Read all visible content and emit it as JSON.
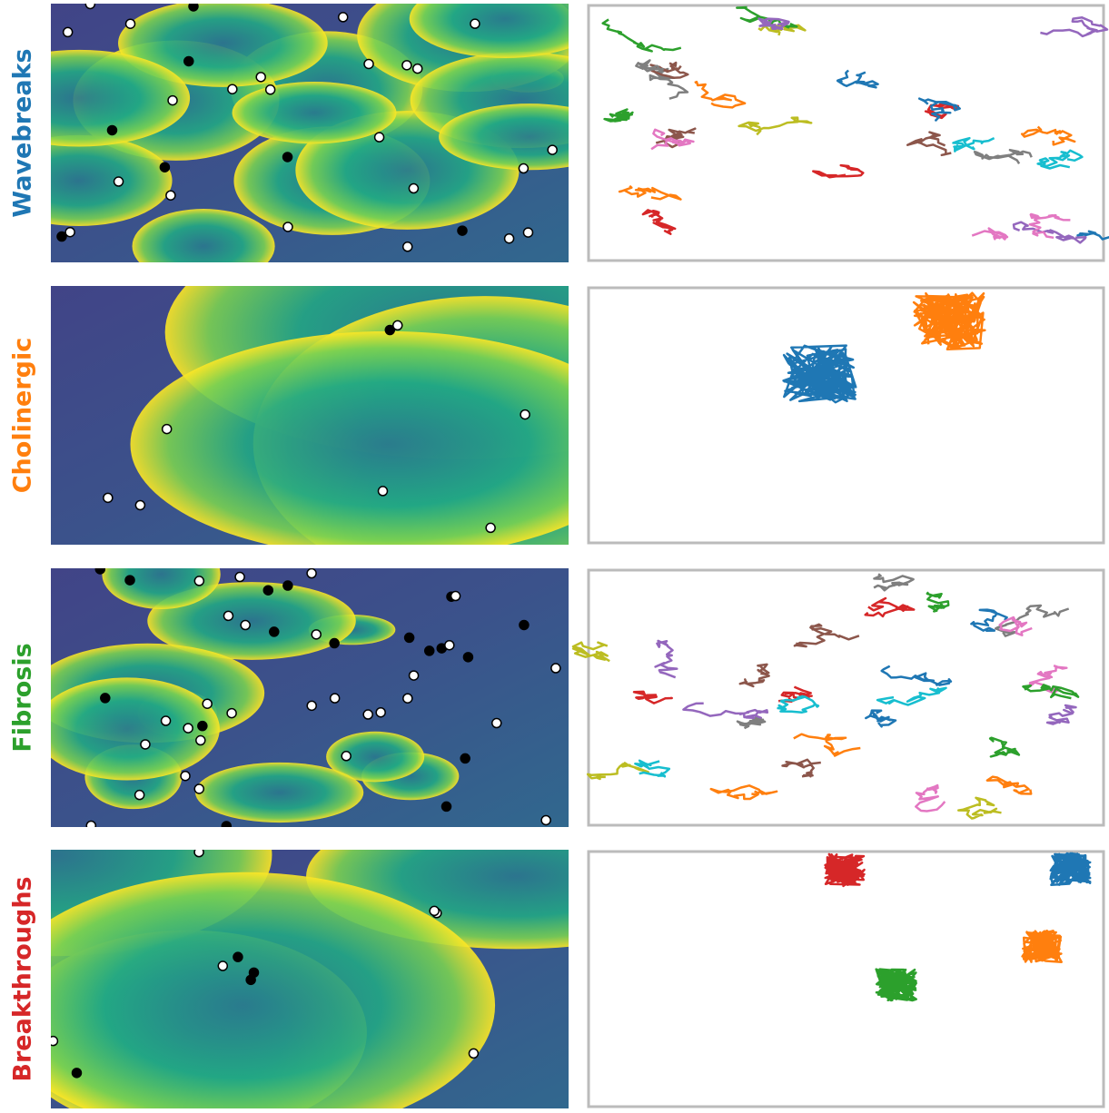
{
  "rows": [
    {
      "label": "Wavebreaks",
      "color": "#1f77b4"
    },
    {
      "label": "Cholinergic",
      "color": "#ff7f0e"
    },
    {
      "label": "Fibrosis",
      "color": "#2ca02c"
    },
    {
      "label": "Breakthroughs",
      "color": "#d62728"
    }
  ]
}
